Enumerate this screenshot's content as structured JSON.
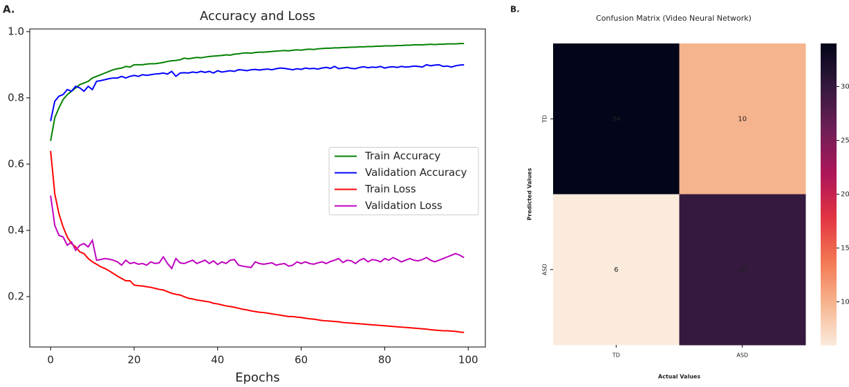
{
  "chart_data": [
    {
      "type": "line",
      "panel_label": "A.",
      "title": "Accuracy and Loss",
      "xlabel": "Epochs",
      "x": [
        0,
        1,
        2,
        3,
        4,
        5,
        6,
        7,
        8,
        9,
        10,
        11,
        12,
        13,
        14,
        15,
        16,
        17,
        18,
        19,
        20,
        21,
        22,
        23,
        24,
        25,
        26,
        27,
        28,
        29,
        30,
        31,
        32,
        33,
        34,
        35,
        36,
        37,
        38,
        39,
        40,
        41,
        42,
        43,
        44,
        45,
        46,
        47,
        48,
        49,
        50,
        51,
        52,
        53,
        54,
        55,
        56,
        57,
        58,
        59,
        60,
        61,
        62,
        63,
        64,
        65,
        66,
        67,
        68,
        69,
        70,
        71,
        72,
        73,
        74,
        75,
        76,
        77,
        78,
        79,
        80,
        81,
        82,
        83,
        84,
        85,
        86,
        87,
        88,
        89,
        90,
        91,
        92,
        93,
        94,
        95,
        96,
        97,
        98,
        99
      ],
      "series": [
        {
          "name": "Train Accuracy",
          "color": "#008000",
          "values": [
            0.67,
            0.74,
            0.77,
            0.795,
            0.81,
            0.82,
            0.83,
            0.84,
            0.845,
            0.85,
            0.86,
            0.865,
            0.87,
            0.875,
            0.88,
            0.885,
            0.888,
            0.89,
            0.895,
            0.893,
            0.9,
            0.9,
            0.9,
            0.902,
            0.903,
            0.903,
            0.905,
            0.907,
            0.91,
            0.912,
            0.913,
            0.915,
            0.92,
            0.918,
            0.92,
            0.922,
            0.921,
            0.923,
            0.925,
            0.926,
            0.927,
            0.928,
            0.93,
            0.929,
            0.932,
            0.933,
            0.935,
            0.936,
            0.935,
            0.937,
            0.938,
            0.938,
            0.939,
            0.94,
            0.941,
            0.942,
            0.943,
            0.942,
            0.944,
            0.945,
            0.944,
            0.946,
            0.947,
            0.946,
            0.948,
            0.949,
            0.95,
            0.95,
            0.951,
            0.951,
            0.952,
            0.952,
            0.953,
            0.953,
            0.954,
            0.954,
            0.955,
            0.955,
            0.956,
            0.956,
            0.957,
            0.957,
            0.957,
            0.958,
            0.958,
            0.959,
            0.959,
            0.96,
            0.96,
            0.96,
            0.961,
            0.962,
            0.961,
            0.962,
            0.962,
            0.963,
            0.963,
            0.963,
            0.964,
            0.964
          ]
        },
        {
          "name": "Validation Accuracy",
          "color": "#0000ff",
          "values": [
            0.73,
            0.79,
            0.805,
            0.81,
            0.825,
            0.82,
            0.835,
            0.83,
            0.82,
            0.835,
            0.825,
            0.85,
            0.852,
            0.855,
            0.858,
            0.86,
            0.86,
            0.865,
            0.86,
            0.865,
            0.868,
            0.865,
            0.87,
            0.868,
            0.87,
            0.872,
            0.873,
            0.875,
            0.872,
            0.88,
            0.865,
            0.875,
            0.876,
            0.875,
            0.878,
            0.876,
            0.88,
            0.877,
            0.88,
            0.875,
            0.882,
            0.878,
            0.88,
            0.882,
            0.88,
            0.885,
            0.884,
            0.882,
            0.885,
            0.886,
            0.884,
            0.886,
            0.887,
            0.885,
            0.888,
            0.89,
            0.889,
            0.887,
            0.885,
            0.888,
            0.886,
            0.89,
            0.888,
            0.889,
            0.887,
            0.89,
            0.892,
            0.889,
            0.895,
            0.888,
            0.89,
            0.892,
            0.889,
            0.888,
            0.892,
            0.894,
            0.891,
            0.893,
            0.892,
            0.895,
            0.89,
            0.893,
            0.894,
            0.892,
            0.895,
            0.893,
            0.894,
            0.896,
            0.895,
            0.893,
            0.9,
            0.897,
            0.899,
            0.9,
            0.895,
            0.896,
            0.893,
            0.897,
            0.899,
            0.9
          ]
        },
        {
          "name": "Train Loss",
          "color": "#ff0000",
          "values": [
            0.64,
            0.51,
            0.45,
            0.41,
            0.38,
            0.36,
            0.35,
            0.335,
            0.33,
            0.315,
            0.305,
            0.298,
            0.29,
            0.285,
            0.278,
            0.27,
            0.262,
            0.255,
            0.248,
            0.248,
            0.235,
            0.233,
            0.232,
            0.23,
            0.228,
            0.225,
            0.222,
            0.22,
            0.215,
            0.21,
            0.207,
            0.205,
            0.2,
            0.195,
            0.193,
            0.19,
            0.188,
            0.186,
            0.184,
            0.18,
            0.178,
            0.175,
            0.172,
            0.17,
            0.168,
            0.165,
            0.162,
            0.16,
            0.157,
            0.155,
            0.153,
            0.152,
            0.15,
            0.148,
            0.146,
            0.144,
            0.142,
            0.14,
            0.14,
            0.138,
            0.137,
            0.135,
            0.133,
            0.132,
            0.13,
            0.128,
            0.127,
            0.126,
            0.125,
            0.124,
            0.122,
            0.121,
            0.12,
            0.119,
            0.118,
            0.117,
            0.116,
            0.115,
            0.114,
            0.113,
            0.112,
            0.111,
            0.11,
            0.109,
            0.108,
            0.107,
            0.106,
            0.105,
            0.104,
            0.103,
            0.102,
            0.1,
            0.099,
            0.098,
            0.097,
            0.097,
            0.096,
            0.095,
            0.093,
            0.092
          ]
        },
        {
          "name": "Validation Loss",
          "color": "#bf00bf",
          "values": [
            0.505,
            0.415,
            0.385,
            0.38,
            0.355,
            0.365,
            0.34,
            0.355,
            0.36,
            0.35,
            0.37,
            0.31,
            0.312,
            0.315,
            0.313,
            0.31,
            0.305,
            0.295,
            0.31,
            0.3,
            0.303,
            0.298,
            0.3,
            0.295,
            0.305,
            0.3,
            0.302,
            0.32,
            0.3,
            0.285,
            0.315,
            0.302,
            0.3,
            0.305,
            0.31,
            0.3,
            0.305,
            0.31,
            0.3,
            0.308,
            0.297,
            0.305,
            0.3,
            0.31,
            0.312,
            0.295,
            0.292,
            0.29,
            0.288,
            0.305,
            0.3,
            0.298,
            0.3,
            0.302,
            0.295,
            0.298,
            0.3,
            0.292,
            0.295,
            0.305,
            0.3,
            0.305,
            0.3,
            0.298,
            0.302,
            0.305,
            0.3,
            0.306,
            0.31,
            0.315,
            0.303,
            0.31,
            0.308,
            0.3,
            0.31,
            0.315,
            0.305,
            0.312,
            0.31,
            0.305,
            0.315,
            0.31,
            0.318,
            0.312,
            0.305,
            0.31,
            0.315,
            0.31,
            0.308,
            0.312,
            0.318,
            0.31,
            0.305,
            0.31,
            0.315,
            0.32,
            0.325,
            0.33,
            0.325,
            0.318
          ]
        }
      ],
      "xlim": [
        -5,
        104.1
      ],
      "xticks": [
        0,
        20,
        40,
        60,
        80,
        100
      ],
      "ylim": [
        0.048,
        1.008
      ],
      "yticks": [
        0.2,
        0.4,
        0.6,
        0.8,
        {
          "value": 1,
          "label": "1.0"
        }
      ],
      "legend": "right"
    },
    {
      "type": "heatmap",
      "panel_label": "B.",
      "title": "Confusion Matrix (Video Neural Network)",
      "xlabel": "Actual Values",
      "ylabel": "Predicted Values",
      "x_categories": [
        "TD",
        "ASD"
      ],
      "y_categories": [
        "TD",
        "ASD"
      ],
      "values": [
        [
          34,
          10
        ],
        [
          6,
          30
        ]
      ],
      "colorbar_lim": [
        6,
        34
      ],
      "colorbar_ticks": [
        10,
        15,
        20,
        25,
        30
      ]
    }
  ]
}
